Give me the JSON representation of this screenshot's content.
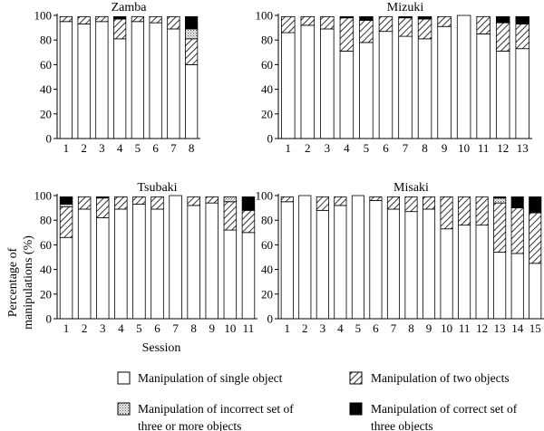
{
  "ylabel": [
    "Percentage of",
    "manipulations (%)"
  ],
  "xlabel": "Session",
  "yticks": [
    "0",
    "20",
    "40",
    "60",
    "80",
    "100"
  ],
  "legend": [
    {
      "name": "single",
      "lines": [
        "Manipulation of single object"
      ]
    },
    {
      "name": "two",
      "lines": [
        "Manipulation of two objects"
      ]
    },
    {
      "name": "incorrect",
      "lines": [
        "Manipulation of incorrect set of",
        "three or more objects"
      ]
    },
    {
      "name": "correct",
      "lines": [
        "Manipulation of correct set of",
        "three objects"
      ]
    }
  ],
  "colors": {
    "single": "#ffffff",
    "two": "hatched",
    "incorrect": "dotted",
    "correct": "#000000"
  },
  "chart_data": [
    {
      "type": "bar",
      "stacked": true,
      "title": "Zamba",
      "ylim": [
        0,
        100
      ],
      "categories": [
        "1",
        "2",
        "3",
        "4",
        "5",
        "6",
        "7",
        "8"
      ],
      "series": [
        {
          "name": "Manipulation of single object",
          "values": [
            95,
            93,
            95,
            81,
            95,
            94,
            89,
            60
          ]
        },
        {
          "name": "Manipulation of two objects",
          "values": [
            4,
            6,
            4,
            16,
            4,
            5,
            10,
            21
          ]
        },
        {
          "name": "Manipulation of incorrect set of three or more objects",
          "values": [
            0,
            0,
            0,
            0,
            0,
            0,
            0,
            8
          ]
        },
        {
          "name": "Manipulation of correct set of three objects",
          "values": [
            0,
            0,
            0,
            2,
            0,
            0,
            0,
            10
          ]
        }
      ]
    },
    {
      "type": "bar",
      "stacked": true,
      "title": "Mizuki",
      "ylim": [
        0,
        100
      ],
      "categories": [
        "1",
        "2",
        "3",
        "4",
        "5",
        "6",
        "7",
        "8",
        "9",
        "10",
        "11",
        "12",
        "13"
      ],
      "series": [
        {
          "name": "Manipulation of single object",
          "values": [
            86,
            92,
            89,
            71,
            78,
            87,
            83,
            81,
            91,
            100,
            85,
            71,
            73
          ]
        },
        {
          "name": "Manipulation of two objects",
          "values": [
            13,
            7,
            10,
            27,
            18,
            12,
            15,
            16,
            8,
            0,
            14,
            23,
            20
          ]
        },
        {
          "name": "Manipulation of incorrect set of three or more objects",
          "values": [
            0,
            0,
            0,
            0,
            0,
            0,
            0,
            0,
            0,
            0,
            0,
            0,
            0
          ]
        },
        {
          "name": "Manipulation of correct set of three objects",
          "values": [
            0,
            0,
            0,
            1,
            3,
            0,
            1,
            2,
            0,
            0,
            0,
            5,
            6
          ]
        }
      ]
    },
    {
      "type": "bar",
      "stacked": true,
      "title": "Tsubaki",
      "ylim": [
        0,
        100
      ],
      "categories": [
        "1",
        "2",
        "3",
        "4",
        "5",
        "6",
        "7",
        "8",
        "9",
        "10",
        "11"
      ],
      "series": [
        {
          "name": "Manipulation of single object",
          "values": [
            66,
            89,
            82,
            89,
            93,
            89,
            100,
            92,
            94,
            72,
            70
          ]
        },
        {
          "name": "Manipulation of two objects",
          "values": [
            25,
            10,
            16,
            10,
            6,
            10,
            0,
            7,
            5,
            23,
            18
          ]
        },
        {
          "name": "Manipulation of incorrect set of three or more objects",
          "values": [
            2,
            0,
            0,
            0,
            0,
            0,
            0,
            0,
            0,
            4,
            0
          ]
        },
        {
          "name": "Manipulation of correct set of three objects",
          "values": [
            6,
            0,
            1,
            0,
            0,
            0,
            0,
            0,
            0,
            0,
            11
          ]
        }
      ]
    },
    {
      "type": "bar",
      "stacked": true,
      "title": "Misaki",
      "ylim": [
        0,
        100
      ],
      "categories": [
        "1",
        "2",
        "3",
        "4",
        "5",
        "6",
        "7",
        "8",
        "9",
        "10",
        "11",
        "12",
        "13",
        "14",
        "15"
      ],
      "series": [
        {
          "name": "Manipulation of single object",
          "values": [
            95,
            100,
            88,
            92,
            100,
            96,
            89,
            87,
            89,
            73,
            76,
            76,
            54,
            53,
            45
          ]
        },
        {
          "name": "Manipulation of two objects",
          "values": [
            4,
            0,
            11,
            7,
            0,
            3,
            10,
            12,
            10,
            26,
            23,
            23,
            40,
            37,
            41
          ]
        },
        {
          "name": "Manipulation of incorrect set of three or more objects",
          "values": [
            0,
            0,
            0,
            0,
            0,
            0,
            0,
            0,
            0,
            0,
            0,
            0,
            4,
            0,
            0
          ]
        },
        {
          "name": "Manipulation of correct set of three objects",
          "values": [
            0,
            0,
            0,
            0,
            0,
            0,
            0,
            0,
            0,
            0,
            0,
            0,
            1,
            9,
            13
          ]
        }
      ]
    }
  ]
}
